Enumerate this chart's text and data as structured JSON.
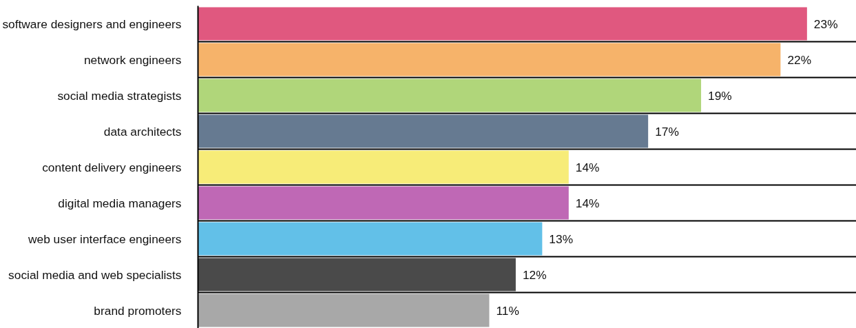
{
  "chart_data": {
    "type": "bar",
    "orientation": "horizontal",
    "categories": [
      "software designers and engineers",
      "network engineers",
      "social media strategists",
      "data architects",
      "content delivery engineers",
      "digital media managers",
      "web user interface engineers",
      "social media and web specialists",
      "brand promoters"
    ],
    "values": [
      23,
      22,
      19,
      17,
      14,
      14,
      13,
      12,
      11
    ],
    "colors": [
      "#e0587f",
      "#f6b36a",
      "#b0d67a",
      "#667a91",
      "#f7ec78",
      "#bf68b5",
      "#62c0e8",
      "#4a4a4a",
      "#a8a8a8"
    ],
    "value_labels": [
      "23%",
      "22%",
      "19%",
      "17%",
      "14%",
      "14%",
      "13%",
      "12%",
      "11%"
    ],
    "tick_labels": "y",
    "grid": "y"
  }
}
